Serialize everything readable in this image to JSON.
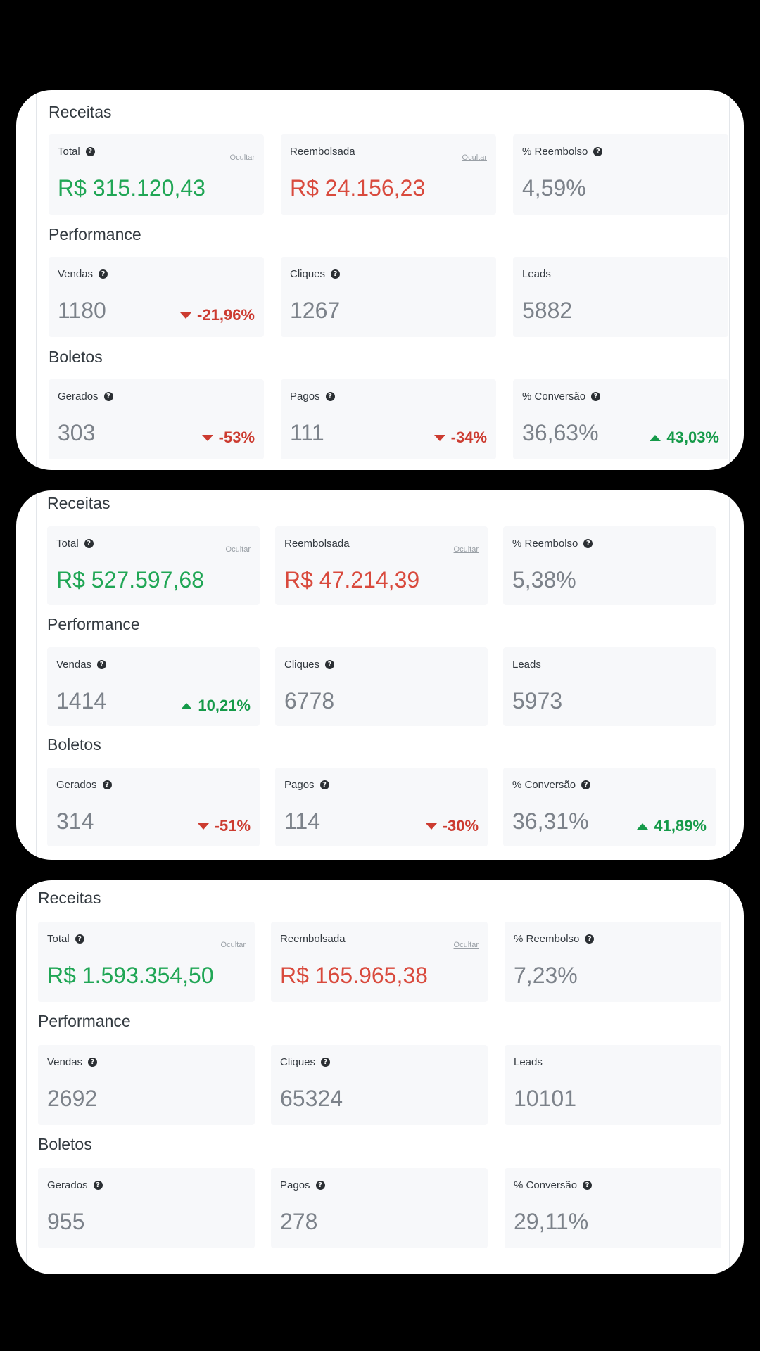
{
  "panels": [
    {
      "receitas_title": "Receitas",
      "total_label": "Total",
      "total_hide": "Ocultar",
      "total_value": "R$ 315.120,43",
      "reembolsada_label": "Reembolsada",
      "reembolsada_hide": "Ocultar",
      "reembolsada_value": "R$ 24.156,23",
      "reembolso_label": "% Reembolso",
      "reembolso_value": "4,59%",
      "performance_title": "Performance",
      "vendas_label": "Vendas",
      "vendas_value": "1180",
      "vendas_delta": "-21,96%",
      "cliques_label": "Cliques",
      "cliques_value": "1267",
      "leads_label": "Leads",
      "leads_value": "5882",
      "boletos_title": "Boletos",
      "gerados_label": "Gerados",
      "gerados_value": "303",
      "gerados_delta": "-53%",
      "pagos_label": "Pagos",
      "pagos_value": "111",
      "pagos_delta": "-34%",
      "conversao_label": "% Conversão",
      "conversao_value": "36,63%",
      "conversao_delta": "43,03%"
    },
    {
      "receitas_title": "Receitas",
      "total_label": "Total",
      "total_hide": "Ocultar",
      "total_value": "R$ 527.597,68",
      "reembolsada_label": "Reembolsada",
      "reembolsada_hide": "Ocultar",
      "reembolsada_value": "R$ 47.214,39",
      "reembolso_label": "% Reembolso",
      "reembolso_value": "5,38%",
      "performance_title": "Performance",
      "vendas_label": "Vendas",
      "vendas_value": "1414",
      "vendas_delta": "10,21%",
      "cliques_label": "Cliques",
      "cliques_value": "6778",
      "leads_label": "Leads",
      "leads_value": "5973",
      "boletos_title": "Boletos",
      "gerados_label": "Gerados",
      "gerados_value": "314",
      "gerados_delta": "-51%",
      "pagos_label": "Pagos",
      "pagos_value": "114",
      "pagos_delta": "-30%",
      "conversao_label": "% Conversão",
      "conversao_value": "36,31%",
      "conversao_delta": "41,89%"
    },
    {
      "receitas_title": "Receitas",
      "total_label": "Total",
      "total_hide": "Ocultar",
      "total_value": "R$ 1.593.354,50",
      "reembolsada_label": "Reembolsada",
      "reembolsada_hide": "Ocultar",
      "reembolsada_value": "R$ 165.965,38",
      "reembolso_label": "% Reembolso",
      "reembolso_value": "7,23%",
      "performance_title": "Performance",
      "vendas_label": "Vendas",
      "vendas_value": "2692",
      "cliques_label": "Cliques",
      "cliques_value": "65324",
      "leads_label": "Leads",
      "leads_value": "10101",
      "boletos_title": "Boletos",
      "gerados_label": "Gerados",
      "gerados_value": "955",
      "pagos_label": "Pagos",
      "pagos_value": "278",
      "conversao_label": "% Conversão",
      "conversao_value": "29,11%"
    }
  ],
  "colors": {
    "positive": "#20a655",
    "negative": "#d94a3d",
    "neutral": "#7c828a"
  },
  "icons": {
    "help": "question-circle-icon",
    "down": "caret-down-icon",
    "up": "caret-up-icon"
  }
}
